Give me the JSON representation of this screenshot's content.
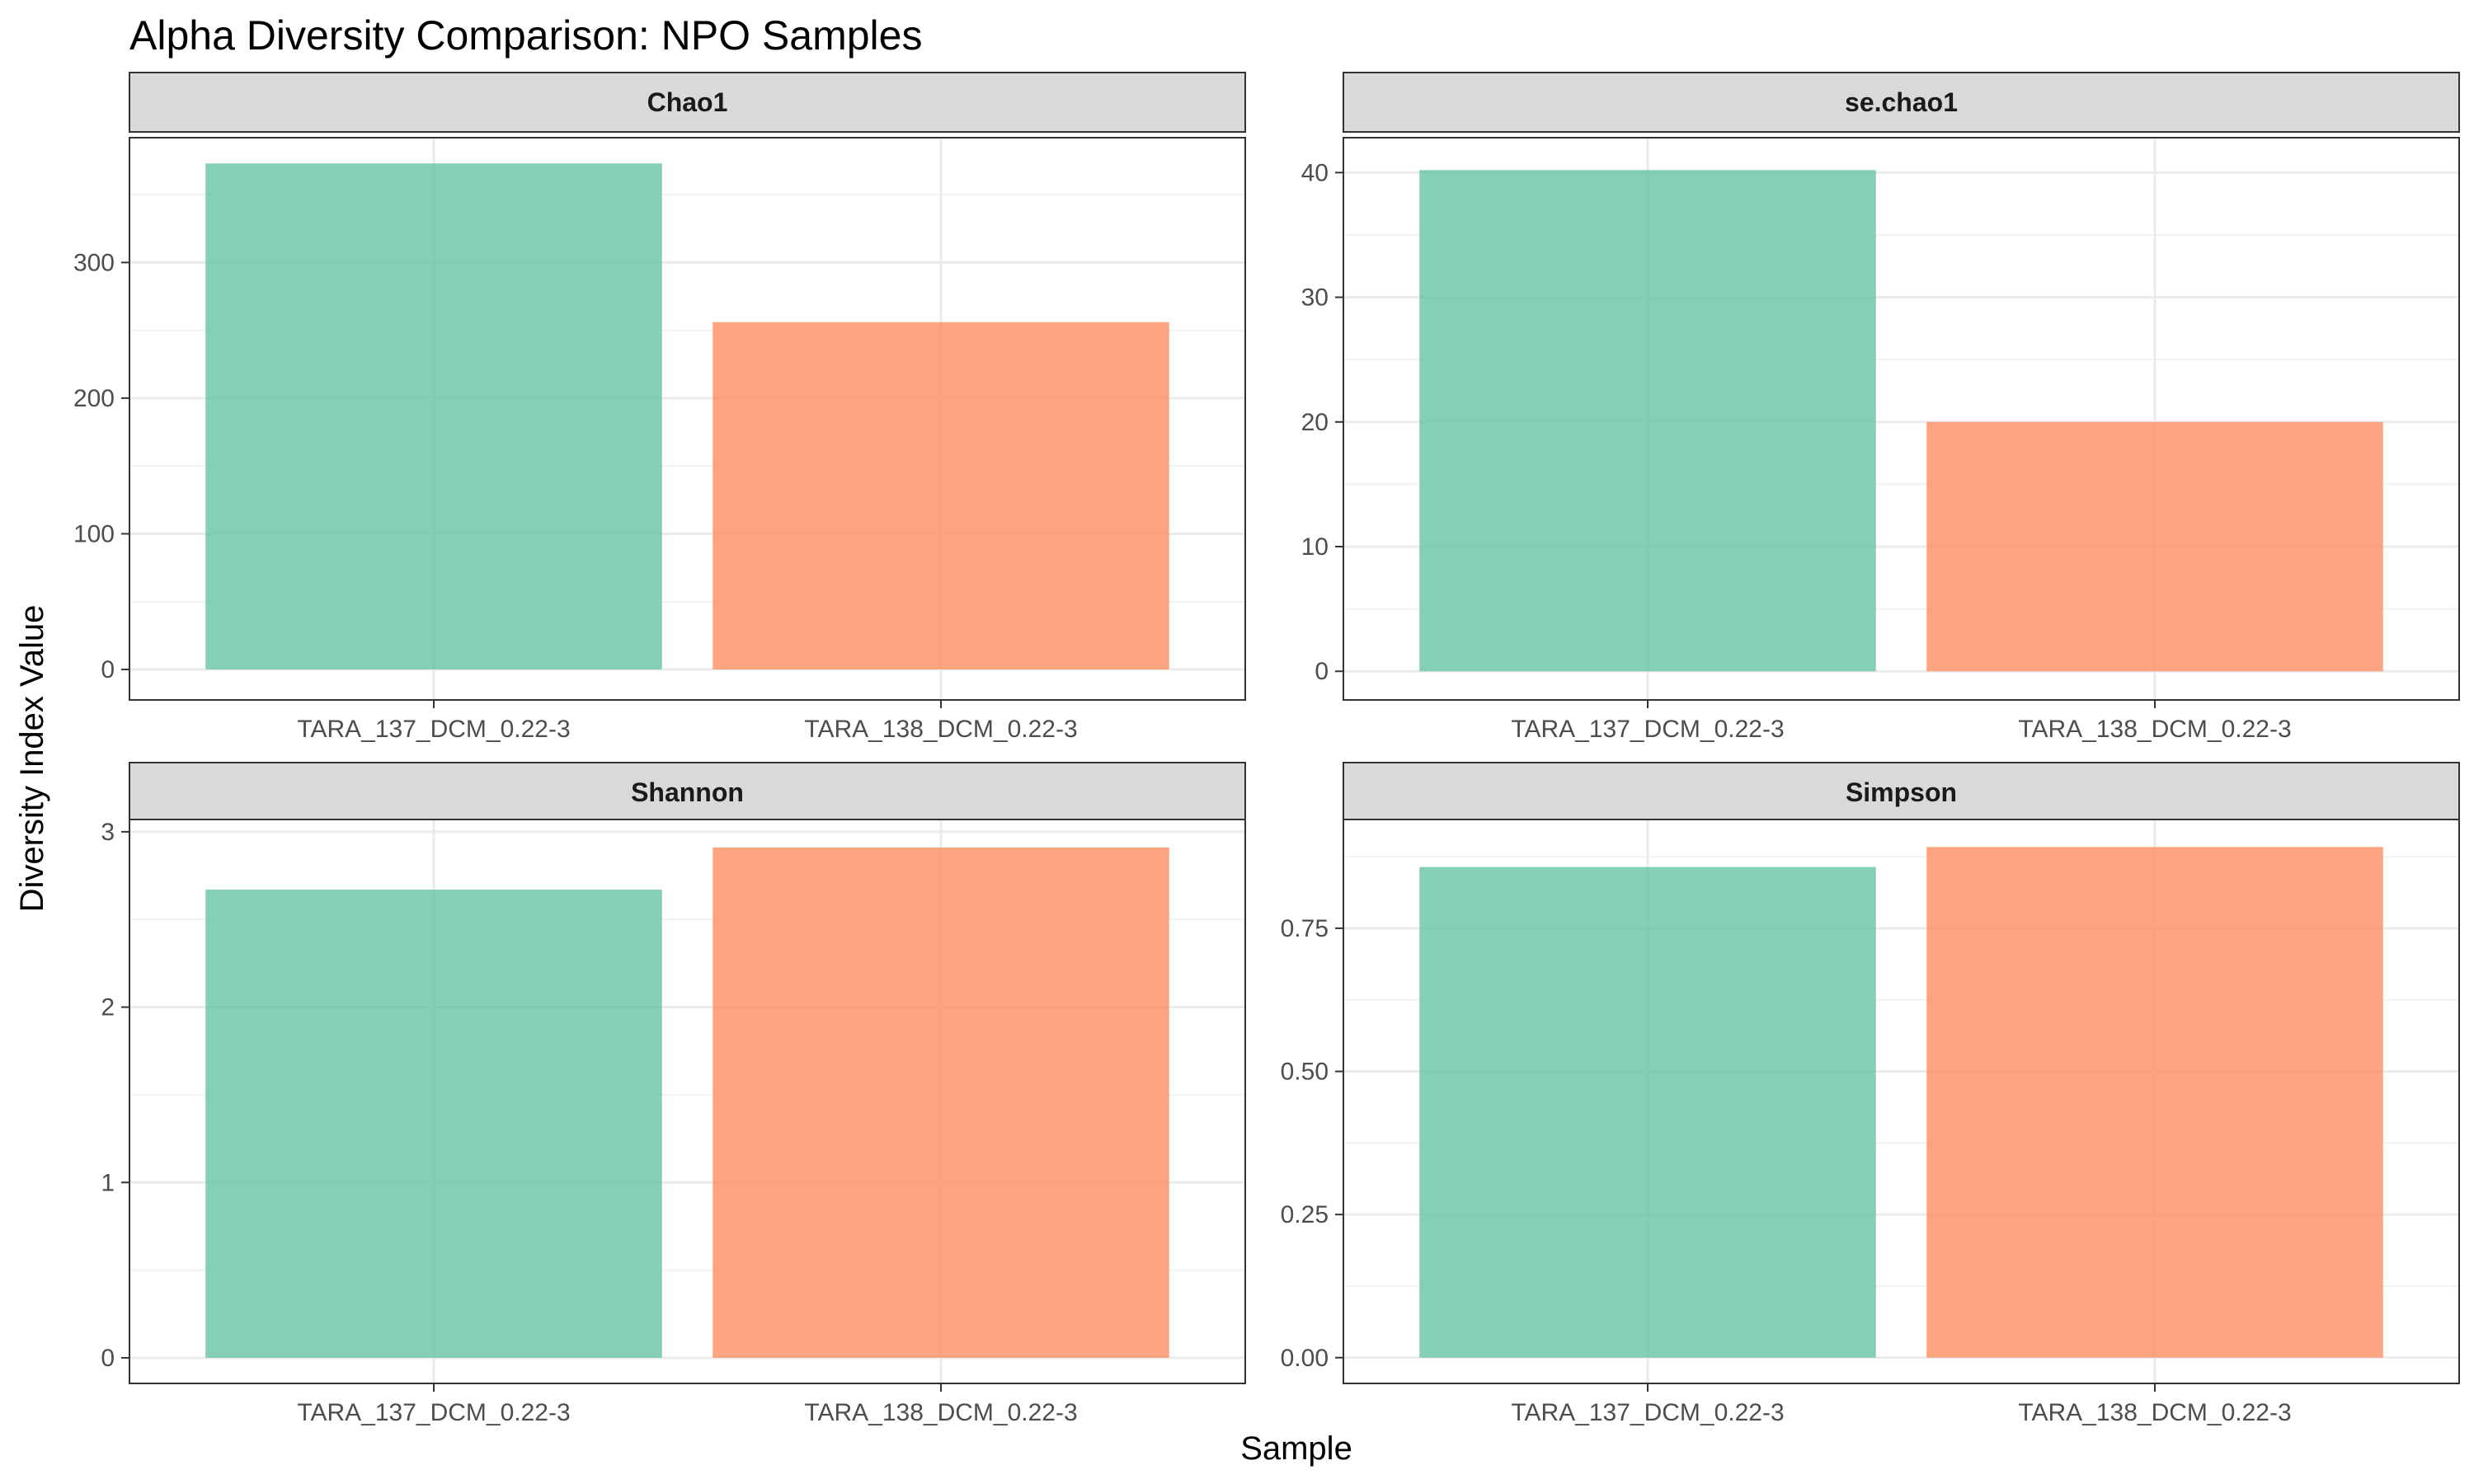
{
  "chart_data": {
    "type": "bar",
    "title": "Alpha Diversity Comparison: NPO Samples",
    "xlabel": "Sample",
    "ylabel": "Diversity Index Value",
    "categories": [
      "TARA_137_DCM_0.22-3",
      "TARA_138_DCM_0.22-3"
    ],
    "colors": [
      "#66c2a5",
      "#fc8d62"
    ],
    "grid": true,
    "legend": "none",
    "facets": [
      {
        "name": "Chao1",
        "values": [
          373,
          256
        ],
        "ylim": [
          -22.5,
          392
        ],
        "ticks": [
          0,
          100,
          200,
          300
        ],
        "tick_labels": [
          "0",
          "100",
          "200",
          "300"
        ]
      },
      {
        "name": "se.chao1",
        "values": [
          40.2,
          20.0
        ],
        "ylim": [
          -2.3,
          42.8
        ],
        "ticks": [
          0,
          10,
          20,
          30,
          40
        ],
        "tick_labels": [
          "0",
          "10",
          "20",
          "30",
          "40"
        ]
      },
      {
        "name": "Shannon",
        "values": [
          2.67,
          2.91
        ],
        "ylim": [
          -0.146,
          3.07
        ],
        "ticks": [
          0,
          1,
          2,
          3
        ],
        "tick_labels": [
          "0",
          "1",
          "2",
          "3"
        ]
      },
      {
        "name": "Simpson",
        "values": [
          0.857,
          0.892
        ],
        "ylim": [
          -0.045,
          0.94
        ],
        "ticks": [
          0,
          0.25,
          0.5,
          0.75
        ],
        "tick_labels": [
          "0.00",
          "0.25",
          "0.50",
          "0.75"
        ]
      }
    ]
  }
}
